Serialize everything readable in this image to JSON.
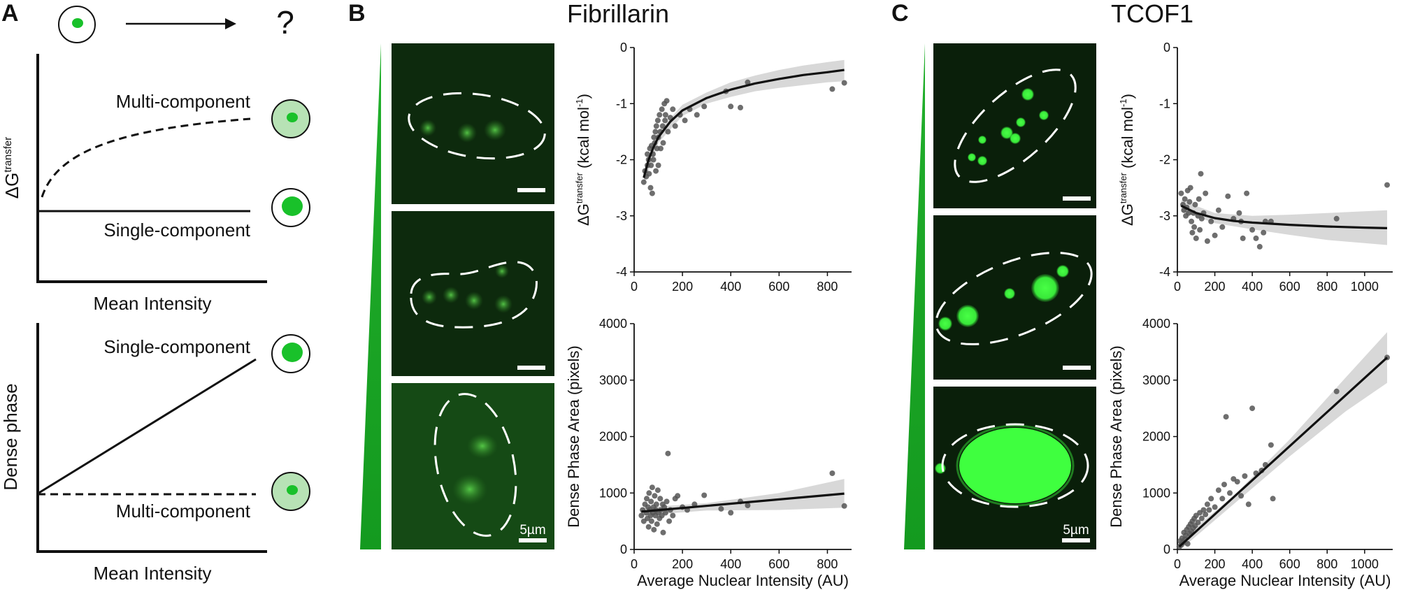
{
  "figure": {
    "panel_a_label": "A",
    "panel_b_label": "B",
    "panel_c_label": "C",
    "title_b": "Fibrillarin",
    "title_c": "TCOF1",
    "question_mark": "?"
  },
  "schematic": {
    "top": {
      "y_label_main": "ΔG",
      "y_label_sup": "transfer",
      "x_label": "Mean Intensity",
      "multi_label": "Multi-component",
      "single_label": "Single-component"
    },
    "bottom": {
      "y_label": "Dense phase",
      "x_label": "Mean Intensity",
      "single_label": "Single-component",
      "multi_label": "Multi-component"
    }
  },
  "micrographs": {
    "scale_bar_label_b": "5µm",
    "scale_bar_label_c": "5µm"
  },
  "colors": {
    "green": "#22b02c",
    "micrograph_bg": "#0d2a0d",
    "points": "#555555",
    "fit": "#111111",
    "ci": "#d8d8d8",
    "cell_light": "#b7e2b5"
  },
  "chart_data": [
    {
      "id": "b_dg",
      "type": "scatter",
      "xlabel": "",
      "ylabel_main": "ΔG",
      "ylabel_sup": "transfer",
      "ylabel_rest": " (kcal mol",
      "ylabel_sup2": "-1",
      "ylabel_end": ")",
      "xlim": [
        0,
        900
      ],
      "ylim": [
        -4,
        0
      ],
      "xticks": [
        0,
        200,
        400,
        600,
        800
      ],
      "yticks": [
        0,
        -1,
        -2,
        -3,
        -4
      ],
      "fit": "log",
      "points": [
        [
          40,
          -2.4
        ],
        [
          45,
          -2.2
        ],
        [
          50,
          -2.3
        ],
        [
          55,
          -2.1
        ],
        [
          55,
          -1.9
        ],
        [
          60,
          -2.0
        ],
        [
          62,
          -2.25
        ],
        [
          65,
          -1.8
        ],
        [
          68,
          -2.5
        ],
        [
          70,
          -2.1
        ],
        [
          72,
          -1.75
        ],
        [
          75,
          -2.6
        ],
        [
          78,
          -1.9
        ],
        [
          80,
          -2.0
        ],
        [
          82,
          -1.6
        ],
        [
          85,
          -1.7
        ],
        [
          88,
          -1.5
        ],
        [
          90,
          -2.2
        ],
        [
          92,
          -1.4
        ],
        [
          95,
          -1.8
        ],
        [
          98,
          -1.3
        ],
        [
          100,
          -1.6
        ],
        [
          100,
          -2.1
        ],
        [
          105,
          -1.2
        ],
        [
          108,
          -1.5
        ],
        [
          110,
          -1.8
        ],
        [
          115,
          -1.1
        ],
        [
          118,
          -1.4
        ],
        [
          120,
          -1.7
        ],
        [
          125,
          -1.0
        ],
        [
          128,
          -1.3
        ],
        [
          130,
          -1.2
        ],
        [
          135,
          -0.95
        ],
        [
          140,
          -1.5
        ],
        [
          150,
          -1.25
        ],
        [
          160,
          -1.1
        ],
        [
          170,
          -1.4
        ],
        [
          190,
          -1.2
        ],
        [
          210,
          -1.3
        ],
        [
          230,
          -1.1
        ],
        [
          260,
          -1.2
        ],
        [
          290,
          -1.05
        ],
        [
          380,
          -0.78
        ],
        [
          400,
          -1.05
        ],
        [
          440,
          -1.07
        ],
        [
          470,
          -0.62
        ],
        [
          820,
          -0.74
        ],
        [
          870,
          -0.63
        ]
      ],
      "fit_curve": [
        [
          40,
          -2.32
        ],
        [
          60,
          -2.0
        ],
        [
          80,
          -1.78
        ],
        [
          100,
          -1.6
        ],
        [
          150,
          -1.32
        ],
        [
          200,
          -1.12
        ],
        [
          300,
          -0.9
        ],
        [
          400,
          -0.75
        ],
        [
          500,
          -0.64
        ],
        [
          600,
          -0.56
        ],
        [
          700,
          -0.49
        ],
        [
          800,
          -0.44
        ],
        [
          870,
          -0.4
        ]
      ],
      "ci_upper": [
        [
          40,
          -2.2
        ],
        [
          100,
          -1.5
        ],
        [
          200,
          -1.02
        ],
        [
          300,
          -0.8
        ],
        [
          400,
          -0.62
        ],
        [
          500,
          -0.5
        ],
        [
          600,
          -0.4
        ],
        [
          700,
          -0.32
        ],
        [
          800,
          -0.26
        ],
        [
          870,
          -0.22
        ]
      ],
      "ci_lower": [
        [
          40,
          -2.45
        ],
        [
          100,
          -1.7
        ],
        [
          200,
          -1.22
        ],
        [
          300,
          -1.0
        ],
        [
          400,
          -0.88
        ],
        [
          500,
          -0.78
        ],
        [
          600,
          -0.72
        ],
        [
          700,
          -0.67
        ],
        [
          800,
          -0.62
        ],
        [
          870,
          -0.6
        ]
      ]
    },
    {
      "id": "b_area",
      "type": "scatter",
      "xlabel": "Average Nuclear Intensity (AU)",
      "ylabel": "Dense Phase Area (pixels)",
      "xlim": [
        0,
        900
      ],
      "ylim": [
        0,
        4000
      ],
      "xticks": [
        0,
        200,
        400,
        600,
        800
      ],
      "yticks": [
        0,
        1000,
        2000,
        3000,
        4000
      ],
      "points": [
        [
          30,
          600
        ],
        [
          35,
          700
        ],
        [
          40,
          500
        ],
        [
          45,
          800
        ],
        [
          50,
          650
        ],
        [
          52,
          900
        ],
        [
          55,
          550
        ],
        [
          58,
          750
        ],
        [
          60,
          400
        ],
        [
          62,
          1000
        ],
        [
          65,
          700
        ],
        [
          68,
          600
        ],
        [
          70,
          850
        ],
        [
          72,
          500
        ],
        [
          75,
          1100
        ],
        [
          78,
          650
        ],
        [
          80,
          750
        ],
        [
          82,
          350
        ],
        [
          85,
          950
        ],
        [
          88,
          600
        ],
        [
          90,
          700
        ],
        [
          92,
          800
        ],
        [
          95,
          450
        ],
        [
          98,
          1050
        ],
        [
          100,
          650
        ],
        [
          105,
          550
        ],
        [
          108,
          900
        ],
        [
          110,
          700
        ],
        [
          115,
          600
        ],
        [
          118,
          800
        ],
        [
          120,
          300
        ],
        [
          125,
          750
        ],
        [
          130,
          650
        ],
        [
          135,
          850
        ],
        [
          140,
          1700
        ],
        [
          145,
          500
        ],
        [
          150,
          700
        ],
        [
          160,
          600
        ],
        [
          170,
          900
        ],
        [
          180,
          950
        ],
        [
          200,
          750
        ],
        [
          220,
          700
        ],
        [
          250,
          800
        ],
        [
          290,
          960
        ],
        [
          360,
          720
        ],
        [
          400,
          650
        ],
        [
          440,
          850
        ],
        [
          470,
          780
        ],
        [
          820,
          1350
        ],
        [
          870,
          770
        ]
      ],
      "fit_curve": [
        [
          30,
          670
        ],
        [
          870,
          990
        ]
      ],
      "ci_upper": [
        [
          30,
          740
        ],
        [
          300,
          820
        ],
        [
          600,
          1000
        ],
        [
          870,
          1250
        ]
      ],
      "ci_lower": [
        [
          30,
          600
        ],
        [
          300,
          690
        ],
        [
          600,
          700
        ],
        [
          870,
          740
        ]
      ]
    },
    {
      "id": "c_dg",
      "type": "scatter",
      "xlabel": "",
      "ylabel_main": "ΔG",
      "ylabel_sup": "transfer",
      "ylabel_rest": " (kcal mol",
      "ylabel_sup2": "-1",
      "ylabel_end": ")",
      "xlim": [
        0,
        1150
      ],
      "ylim": [
        -4,
        0
      ],
      "xticks": [
        0,
        200,
        400,
        600,
        800,
        1000
      ],
      "yticks": [
        0,
        -1,
        -2,
        -3,
        -4
      ],
      "points": [
        [
          20,
          -2.6
        ],
        [
          30,
          -2.8
        ],
        [
          35,
          -2.9
        ],
        [
          40,
          -2.7
        ],
        [
          45,
          -3.0
        ],
        [
          50,
          -2.85
        ],
        [
          55,
          -2.55
        ],
        [
          60,
          -2.95
        ],
        [
          65,
          -2.75
        ],
        [
          70,
          -2.5
        ],
        [
          75,
          -3.1
        ],
        [
          80,
          -3.3
        ],
        [
          85,
          -2.95
        ],
        [
          90,
          -3.2
        ],
        [
          95,
          -2.8
        ],
        [
          100,
          -3.4
        ],
        [
          110,
          -3.0
        ],
        [
          115,
          -2.7
        ],
        [
          120,
          -3.25
        ],
        [
          125,
          -2.25
        ],
        [
          130,
          -3.05
        ],
        [
          140,
          -2.95
        ],
        [
          150,
          -2.6
        ],
        [
          160,
          -3.45
        ],
        [
          180,
          -3.1
        ],
        [
          200,
          -3.35
        ],
        [
          220,
          -2.9
        ],
        [
          240,
          -3.2
        ],
        [
          270,
          -2.65
        ],
        [
          300,
          -3.05
        ],
        [
          330,
          -2.95
        ],
        [
          340,
          -3.1
        ],
        [
          350,
          -3.4
        ],
        [
          370,
          -2.6
        ],
        [
          400,
          -3.25
        ],
        [
          420,
          -3.4
        ],
        [
          440,
          -3.55
        ],
        [
          460,
          -3.3
        ],
        [
          470,
          -3.1
        ],
        [
          500,
          -3.1
        ],
        [
          850,
          -3.05
        ],
        [
          1120,
          -2.45
        ]
      ],
      "fit_curve": [
        [
          20,
          -2.82
        ],
        [
          100,
          -2.95
        ],
        [
          200,
          -3.04
        ],
        [
          300,
          -3.09
        ],
        [
          400,
          -3.12
        ],
        [
          500,
          -3.14
        ],
        [
          600,
          -3.16
        ],
        [
          800,
          -3.19
        ],
        [
          1000,
          -3.21
        ],
        [
          1120,
          -3.22
        ]
      ],
      "ci_upper": [
        [
          20,
          -2.72
        ],
        [
          200,
          -2.95
        ],
        [
          400,
          -3.0
        ],
        [
          600,
          -2.98
        ],
        [
          800,
          -2.95
        ],
        [
          1120,
          -2.9
        ]
      ],
      "ci_lower": [
        [
          20,
          -2.92
        ],
        [
          200,
          -3.13
        ],
        [
          400,
          -3.24
        ],
        [
          600,
          -3.34
        ],
        [
          800,
          -3.43
        ],
        [
          1120,
          -3.52
        ]
      ]
    },
    {
      "id": "c_area",
      "type": "scatter",
      "xlabel": "Average Nuclear Intensity (AU)",
      "ylabel": "Dense Phase Area (pixels)",
      "xlim": [
        0,
        1150
      ],
      "ylim": [
        0,
        4000
      ],
      "xticks": [
        0,
        200,
        400,
        600,
        800,
        1000
      ],
      "yticks": [
        0,
        1000,
        2000,
        3000,
        4000
      ],
      "points": [
        [
          10,
          50
        ],
        [
          15,
          150
        ],
        [
          20,
          80
        ],
        [
          25,
          200
        ],
        [
          30,
          120
        ],
        [
          35,
          300
        ],
        [
          40,
          180
        ],
        [
          45,
          250
        ],
        [
          50,
          350
        ],
        [
          55,
          100
        ],
        [
          60,
          400
        ],
        [
          65,
          280
        ],
        [
          70,
          450
        ],
        [
          75,
          320
        ],
        [
          80,
          500
        ],
        [
          85,
          380
        ],
        [
          90,
          550
        ],
        [
          95,
          420
        ],
        [
          100,
          600
        ],
        [
          110,
          480
        ],
        [
          120,
          650
        ],
        [
          130,
          550
        ],
        [
          140,
          700
        ],
        [
          150,
          620
        ],
        [
          160,
          800
        ],
        [
          170,
          700
        ],
        [
          180,
          900
        ],
        [
          200,
          750
        ],
        [
          220,
          1050
        ],
        [
          240,
          900
        ],
        [
          250,
          1150
        ],
        [
          260,
          2350
        ],
        [
          280,
          1000
        ],
        [
          300,
          1250
        ],
        [
          320,
          1200
        ],
        [
          340,
          950
        ],
        [
          360,
          1300
        ],
        [
          380,
          800
        ],
        [
          400,
          2500
        ],
        [
          420,
          1350
        ],
        [
          450,
          1400
        ],
        [
          470,
          1500
        ],
        [
          500,
          1850
        ],
        [
          510,
          900
        ],
        [
          850,
          2800
        ],
        [
          1120,
          3400
        ]
      ],
      "fit_curve": [
        [
          10,
          50
        ],
        [
          1120,
          3400
        ]
      ],
      "ci_upper": [
        [
          10,
          150
        ],
        [
          300,
          950
        ],
        [
          600,
          1950
        ],
        [
          900,
          3050
        ],
        [
          1120,
          3850
        ]
      ],
      "ci_lower": [
        [
          10,
          -20
        ],
        [
          300,
          800
        ],
        [
          600,
          1650
        ],
        [
          900,
          2450
        ],
        [
          1120,
          2950
        ]
      ]
    }
  ]
}
